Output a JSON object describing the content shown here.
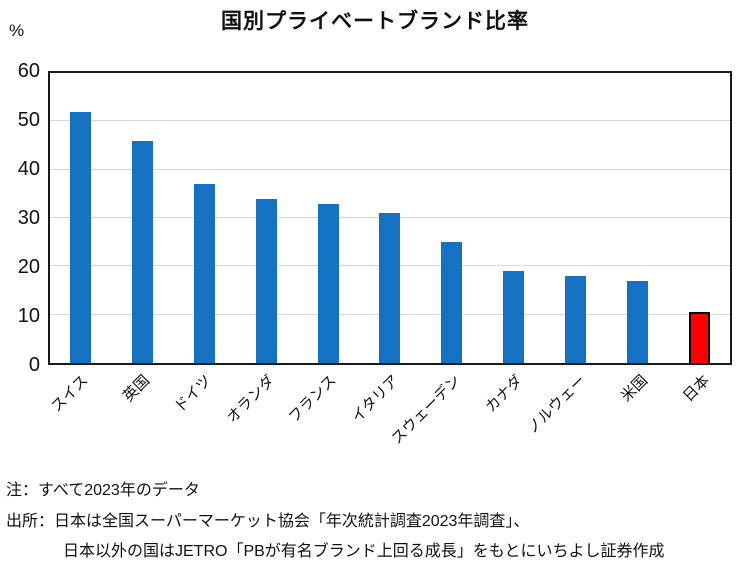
{
  "title": "国別プライベートブランド比率",
  "y_axis": {
    "unit": "%",
    "tick_labels": [
      "0",
      "10",
      "20",
      "30",
      "40",
      "50",
      "60"
    ]
  },
  "chart_data": {
    "type": "bar",
    "title": "国別プライベートブランド比率",
    "categories": [
      "スイス",
      "英国",
      "ドイツ",
      "オランダ",
      "フランス",
      "イタリア",
      "スウェーデン",
      "カナダ",
      "ノルウェー",
      "米国",
      "日本"
    ],
    "values": [
      52,
      46,
      37,
      34,
      33,
      31,
      25,
      19,
      18,
      17,
      10.5
    ],
    "xlabel": "",
    "ylabel": "%",
    "ylim": [
      0,
      60
    ],
    "ytick_step": 10,
    "grid": true,
    "legend_position": "none",
    "bar_color": "#1572C3",
    "gridline_color": "#D8D8D8",
    "highlight": {
      "index": 10,
      "category": "日本",
      "color": "#FF0000",
      "border_color": "#000000"
    }
  },
  "notes": {
    "line1": "注：すべて2023年のデータ",
    "line2": "出所：日本は全国スーパーマーケット協会「年次統計調査2023年調査」、",
    "line3": "日本以外の国はJETRO「PBが有名ブランド上回る成長」をもとにいちよし証券作成"
  }
}
